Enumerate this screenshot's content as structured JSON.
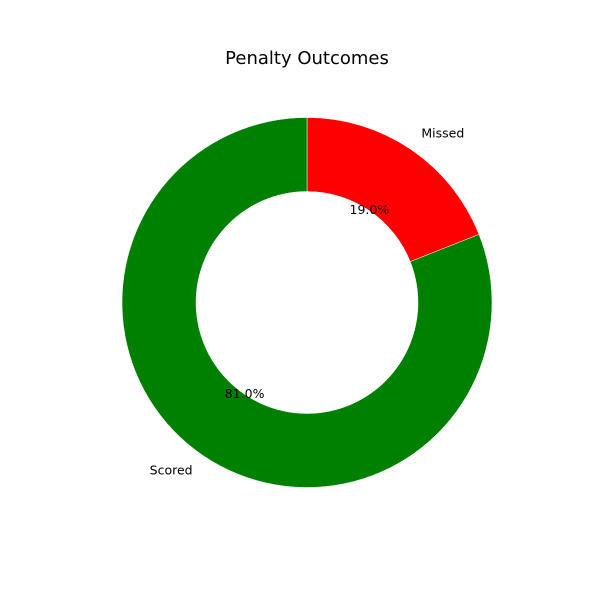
{
  "chart_data": {
    "type": "pie",
    "style": "donut",
    "title": "Penalty Outcomes",
    "categories": [
      "Missed",
      "Scored"
    ],
    "values": [
      19.0,
      81.0
    ],
    "value_labels": [
      "19.0%",
      "81.0%"
    ],
    "colors": [
      "#ff0000",
      "#008000"
    ],
    "start_angle_deg": 90,
    "direction": "clockwise",
    "legend": "none"
  }
}
